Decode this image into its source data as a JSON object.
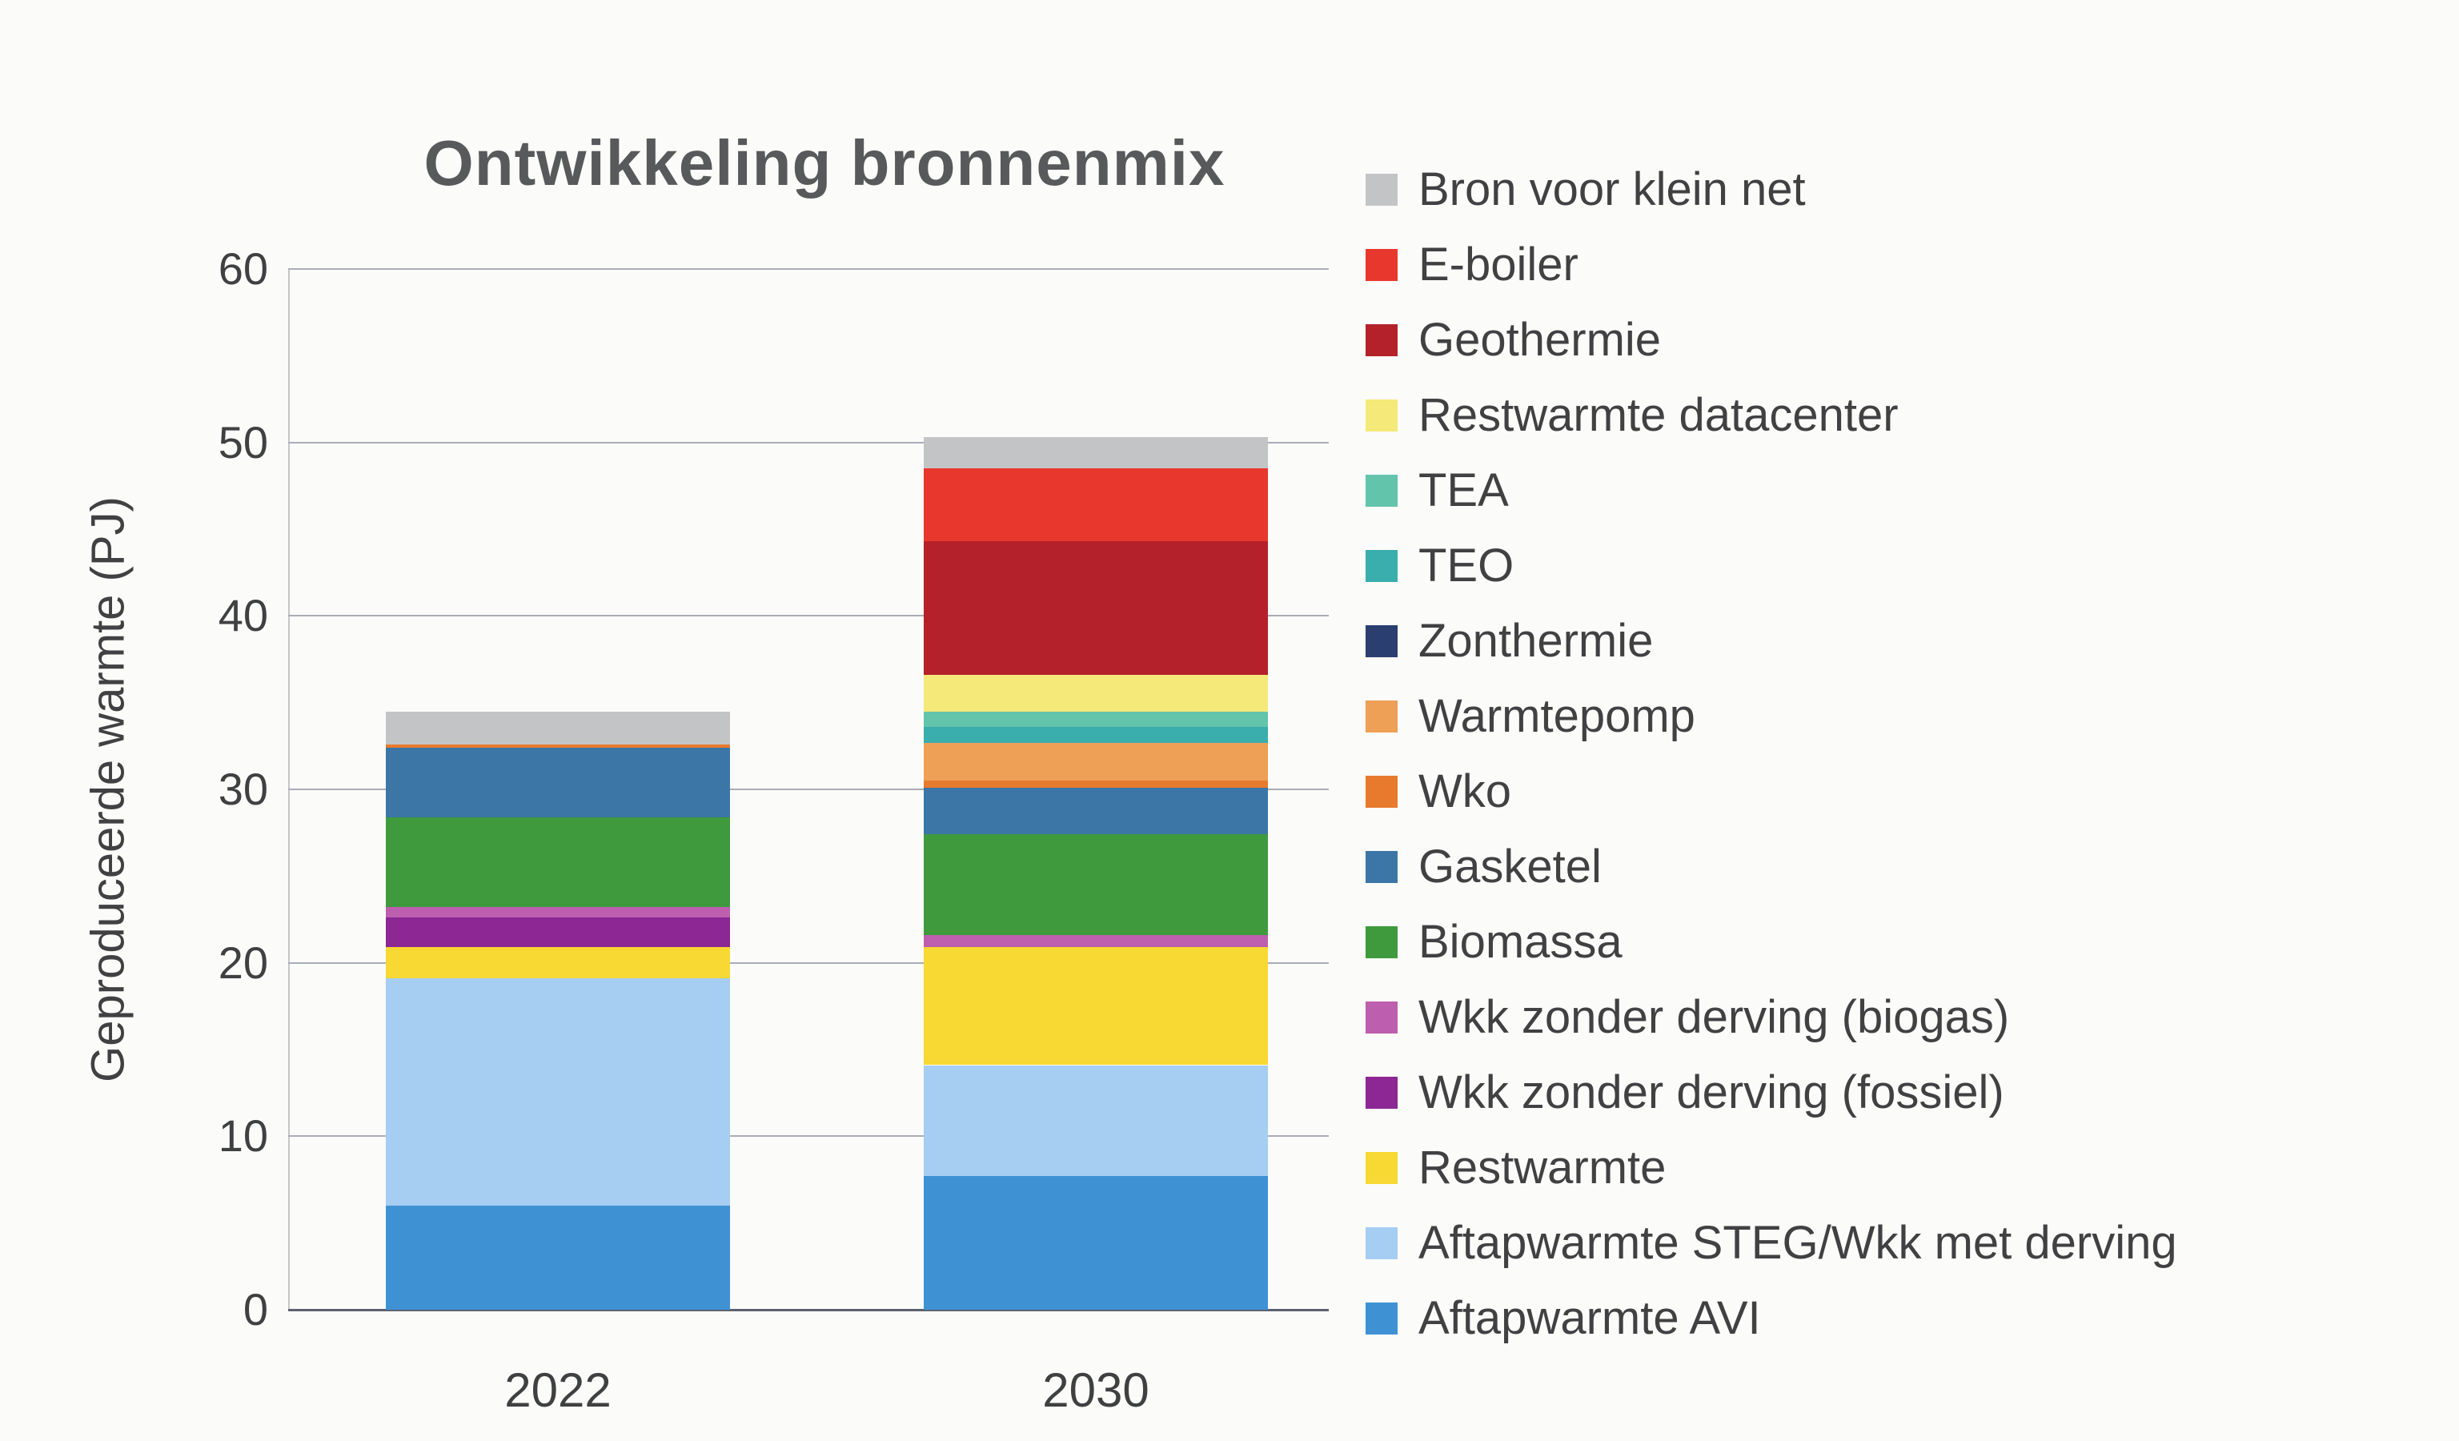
{
  "chart_data": {
    "type": "bar",
    "stacked": true,
    "title": "Ontwikkeling bronnenmix",
    "ylabel": "Geproduceerde warmte (PJ)",
    "xlabel": "",
    "units": "PJ",
    "categories": [
      "2022",
      "2030"
    ],
    "ylim": [
      0,
      60
    ],
    "yticks": [
      0,
      10,
      20,
      30,
      40,
      50,
      60
    ],
    "grid": true,
    "legend_position": "right",
    "series": [
      {
        "name": "Aftapwarmte AVI",
        "color": "#3e92d4",
        "values": [
          6.0,
          7.7
        ]
      },
      {
        "name": "Aftapwarmte STEG/Wkk met derving",
        "color": "#a6cdf2",
        "values": [
          13.1,
          6.4
        ]
      },
      {
        "name": "Restwarmte",
        "color": "#f8d832",
        "values": [
          1.8,
          6.8
        ]
      },
      {
        "name": "Wkk zonder derving (fossiel)",
        "color": "#8c2793",
        "values": [
          1.7,
          0
        ]
      },
      {
        "name": "Wkk zonder derving (biogas)",
        "color": "#bd5fae",
        "values": [
          0.6,
          0.7
        ]
      },
      {
        "name": "Biomassa",
        "color": "#3f9a3d",
        "values": [
          5.2,
          5.8
        ]
      },
      {
        "name": "Gasketel",
        "color": "#3b76a6",
        "values": [
          4.0,
          2.7
        ]
      },
      {
        "name": "Wko",
        "color": "#e87a2e",
        "values": [
          0.2,
          0.4
        ]
      },
      {
        "name": "Warmtepomp",
        "color": "#efa057",
        "values": [
          0,
          2.2
        ]
      },
      {
        "name": "Zonthermie",
        "color": "#2a3f70",
        "values": [
          0,
          0
        ]
      },
      {
        "name": "TEO",
        "color": "#3aadad",
        "values": [
          0,
          0.9
        ]
      },
      {
        "name": "TEA",
        "color": "#62c4ab",
        "values": [
          0,
          0.9
        ]
      },
      {
        "name": "Restwarmte datacenter",
        "color": "#f5e979",
        "values": [
          0,
          2.1
        ]
      },
      {
        "name": "Geothermie",
        "color": "#b5212a",
        "values": [
          0,
          7.7
        ]
      },
      {
        "name": "E-boiler",
        "color": "#e8372c",
        "values": [
          0,
          4.2
        ]
      },
      {
        "name": "Bron voor klein net",
        "color": "#c3c4c6",
        "values": [
          1.9,
          1.8
        ]
      }
    ]
  },
  "colors": {
    "background": "#fbfbf9",
    "grid": "#a9adb6",
    "axis": "#5d6270",
    "text": "#414042",
    "title": "#58595b"
  }
}
